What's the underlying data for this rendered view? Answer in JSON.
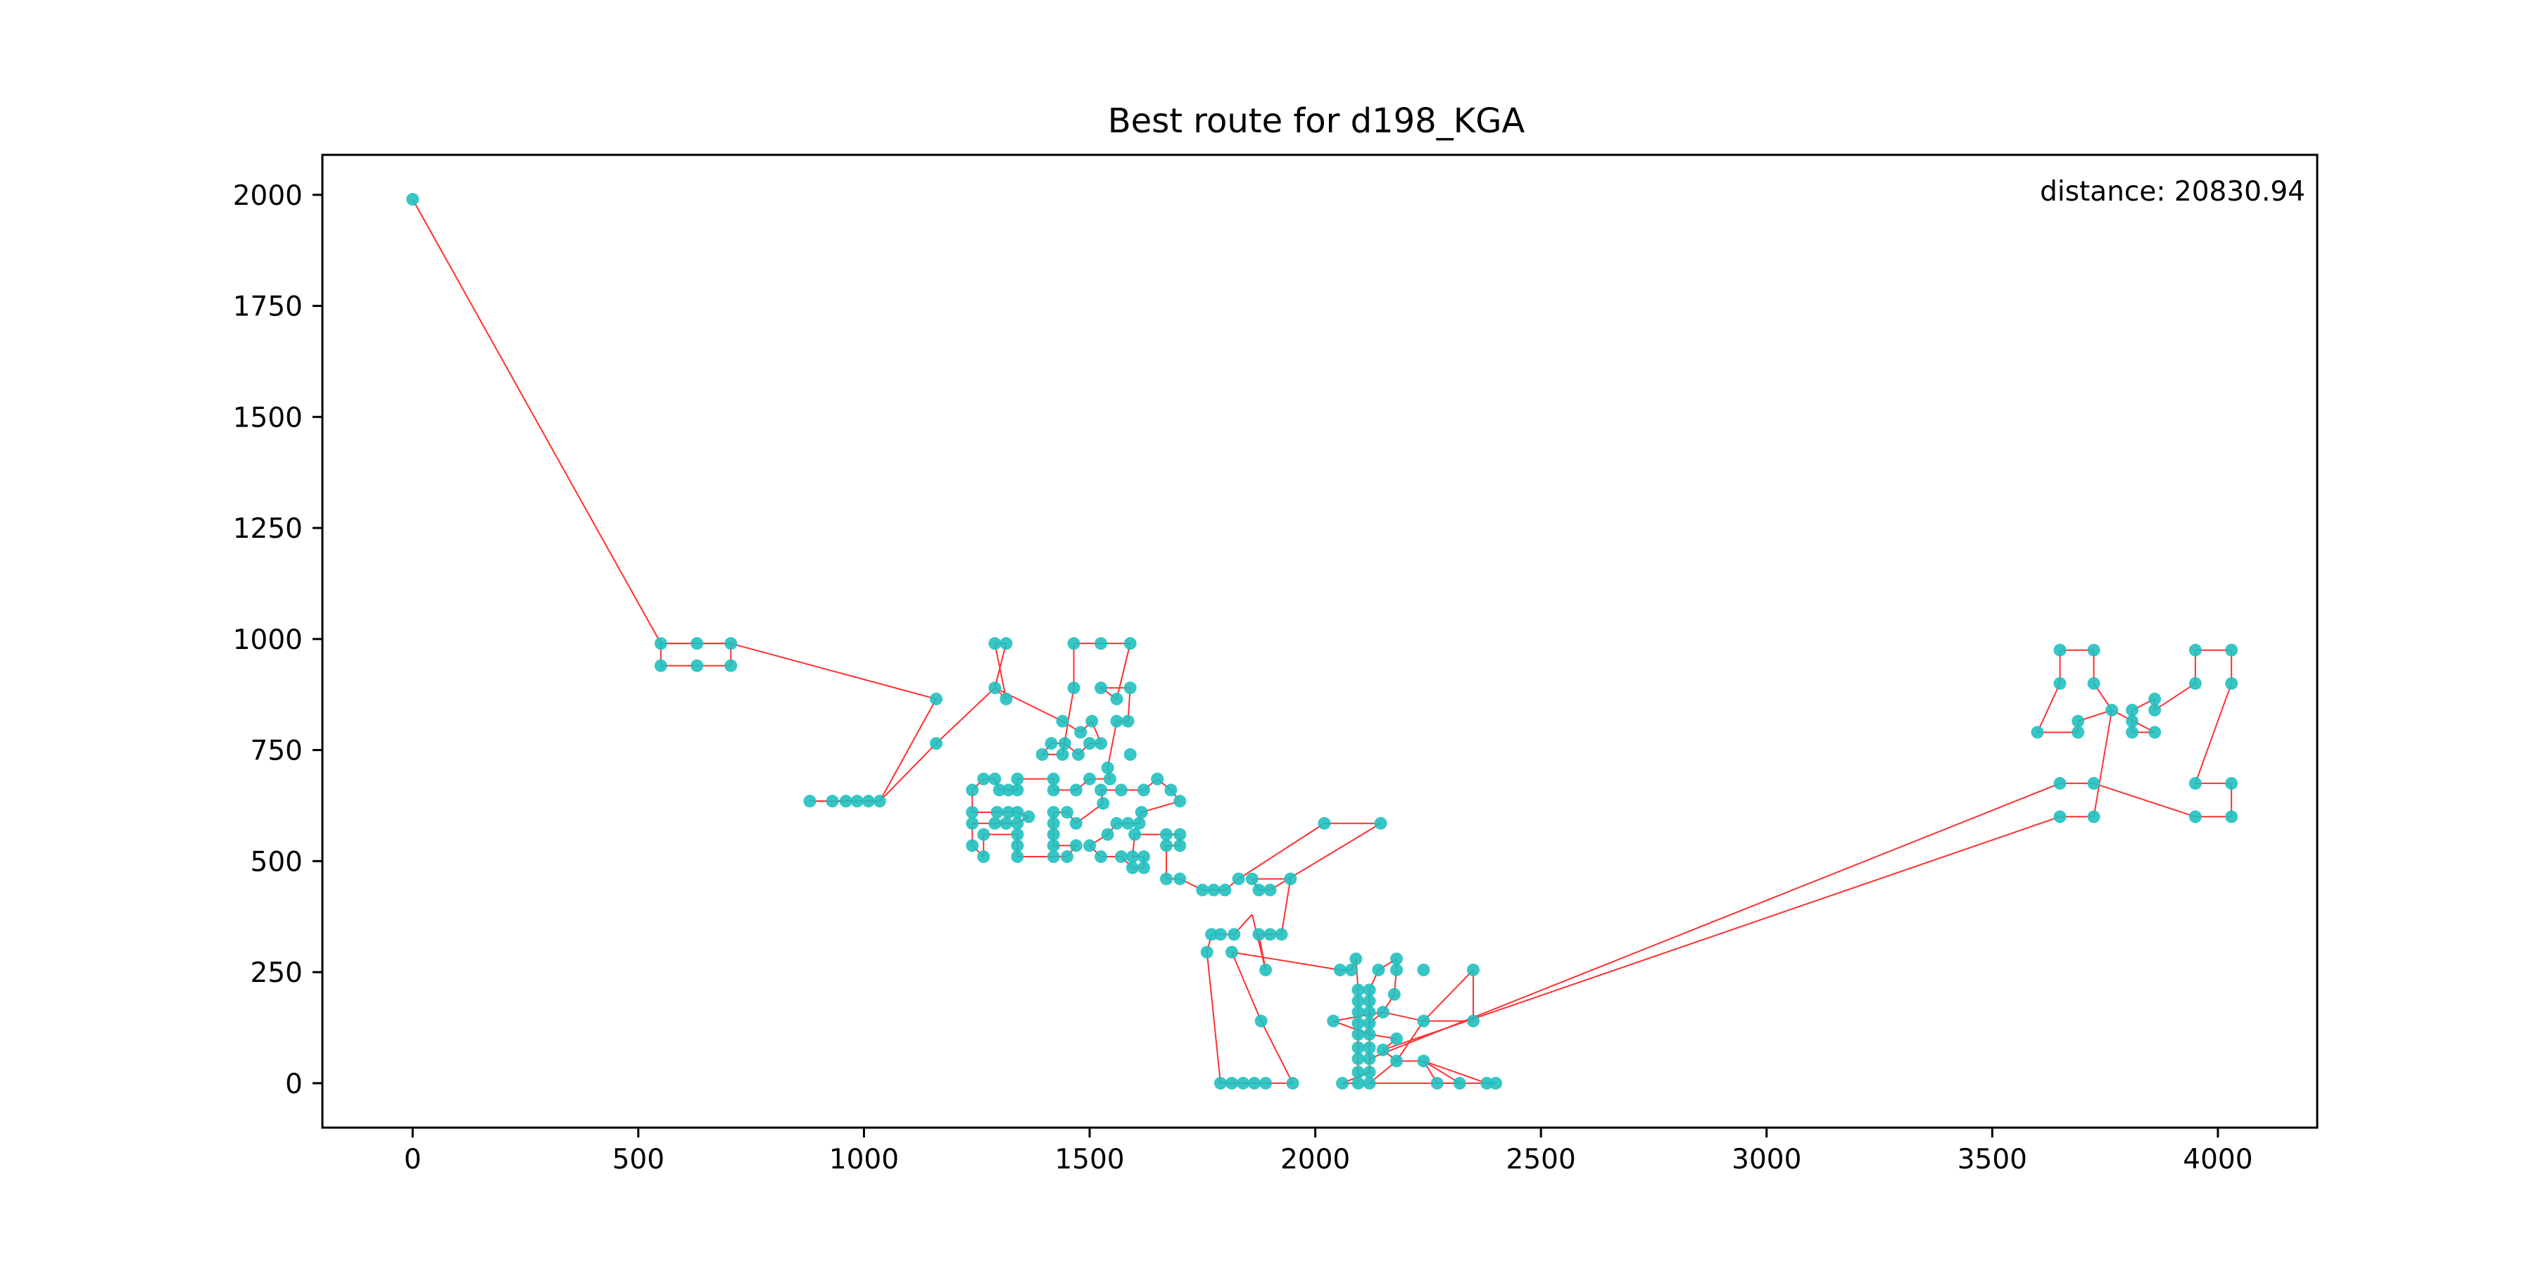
{
  "chart_data": {
    "type": "scatter",
    "title": "Best route for d198_KGA",
    "xlabel": "",
    "ylabel": "",
    "xlim": [
      -200,
      4220
    ],
    "ylim": [
      -100,
      2090
    ],
    "x_ticks": [
      0,
      500,
      1000,
      1500,
      2000,
      2500,
      3000,
      3500,
      4000
    ],
    "y_ticks": [
      0,
      250,
      500,
      750,
      1000,
      1250,
      1500,
      1750,
      2000
    ],
    "annotation": "distance: 20830.94",
    "grid": false,
    "colors": {
      "points": "#20c0c0",
      "route": "#ff3030"
    },
    "points": [
      [
        0,
        1990
      ],
      [
        550,
        990
      ],
      [
        630,
        990
      ],
      [
        705,
        990
      ],
      [
        550,
        940
      ],
      [
        630,
        940
      ],
      [
        705,
        940
      ],
      [
        1160,
        865
      ],
      [
        1160,
        765
      ],
      [
        880,
        635
      ],
      [
        930,
        635
      ],
      [
        960,
        635
      ],
      [
        985,
        635
      ],
      [
        1010,
        635
      ],
      [
        1035,
        635
      ],
      [
        1290,
        990
      ],
      [
        1315,
        990
      ],
      [
        1290,
        890
      ],
      [
        1315,
        865
      ],
      [
        1465,
        990
      ],
      [
        1525,
        990
      ],
      [
        1590,
        990
      ],
      [
        1465,
        890
      ],
      [
        1525,
        890
      ],
      [
        1590,
        890
      ],
      [
        1560,
        865
      ],
      [
        1440,
        815
      ],
      [
        1505,
        815
      ],
      [
        1560,
        815
      ],
      [
        1585,
        815
      ],
      [
        1480,
        790
      ],
      [
        1415,
        765
      ],
      [
        1445,
        765
      ],
      [
        1500,
        765
      ],
      [
        1525,
        765
      ],
      [
        1395,
        740
      ],
      [
        1440,
        740
      ],
      [
        1475,
        740
      ],
      [
        1540,
        710
      ],
      [
        1590,
        740
      ],
      [
        1265,
        685
      ],
      [
        1290,
        685
      ],
      [
        1340,
        685
      ],
      [
        1420,
        685
      ],
      [
        1500,
        685
      ],
      [
        1545,
        685
      ],
      [
        1650,
        685
      ],
      [
        1240,
        660
      ],
      [
        1300,
        660
      ],
      [
        1320,
        660
      ],
      [
        1340,
        660
      ],
      [
        1420,
        660
      ],
      [
        1470,
        660
      ],
      [
        1525,
        660
      ],
      [
        1570,
        660
      ],
      [
        1620,
        660
      ],
      [
        1680,
        660
      ],
      [
        1700,
        635
      ],
      [
        1240,
        610
      ],
      [
        1295,
        610
      ],
      [
        1320,
        610
      ],
      [
        1340,
        610
      ],
      [
        1365,
        600
      ],
      [
        1420,
        610
      ],
      [
        1450,
        610
      ],
      [
        1530,
        630
      ],
      [
        1615,
        610
      ],
      [
        1240,
        585
      ],
      [
        1290,
        585
      ],
      [
        1315,
        585
      ],
      [
        1340,
        585
      ],
      [
        1420,
        585
      ],
      [
        1470,
        585
      ],
      [
        1560,
        585
      ],
      [
        1585,
        585
      ],
      [
        1610,
        585
      ],
      [
        1670,
        560
      ],
      [
        1700,
        560
      ],
      [
        1265,
        560
      ],
      [
        1340,
        560
      ],
      [
        1420,
        560
      ],
      [
        1540,
        560
      ],
      [
        1600,
        560
      ],
      [
        1670,
        535
      ],
      [
        1700,
        535
      ],
      [
        1240,
        535
      ],
      [
        1340,
        535
      ],
      [
        1420,
        535
      ],
      [
        1470,
        535
      ],
      [
        1500,
        535
      ],
      [
        1265,
        510
      ],
      [
        1340,
        510
      ],
      [
        1420,
        510
      ],
      [
        1450,
        510
      ],
      [
        1525,
        510
      ],
      [
        1570,
        510
      ],
      [
        1595,
        510
      ],
      [
        1620,
        510
      ],
      [
        1595,
        485
      ],
      [
        1620,
        485
      ],
      [
        1670,
        460
      ],
      [
        1700,
        460
      ],
      [
        1750,
        435
      ],
      [
        1775,
        435
      ],
      [
        1800,
        435
      ],
      [
        1830,
        460
      ],
      [
        1860,
        460
      ],
      [
        1875,
        435
      ],
      [
        1900,
        435
      ],
      [
        1945,
        460
      ],
      [
        2020,
        585
      ],
      [
        2145,
        585
      ],
      [
        1770,
        335
      ],
      [
        1790,
        335
      ],
      [
        1820,
        335
      ],
      [
        1875,
        335
      ],
      [
        1900,
        335
      ],
      [
        1925,
        335
      ],
      [
        1760,
        295
      ],
      [
        1815,
        295
      ],
      [
        1890,
        255
      ],
      [
        1880,
        140
      ],
      [
        1790,
        0
      ],
      [
        1815,
        0
      ],
      [
        1840,
        0
      ],
      [
        1865,
        0
      ],
      [
        1890,
        0
      ],
      [
        1950,
        0
      ],
      [
        2055,
        255
      ],
      [
        2080,
        255
      ],
      [
        2090,
        280
      ],
      [
        2140,
        255
      ],
      [
        2180,
        280
      ],
      [
        2180,
        255
      ],
      [
        2240,
        255
      ],
      [
        2350,
        255
      ],
      [
        2095,
        210
      ],
      [
        2120,
        210
      ],
      [
        2095,
        185
      ],
      [
        2120,
        185
      ],
      [
        2175,
        200
      ],
      [
        2040,
        140
      ],
      [
        2095,
        160
      ],
      [
        2120,
        160
      ],
      [
        2150,
        160
      ],
      [
        2240,
        140
      ],
      [
        2350,
        140
      ],
      [
        2095,
        135
      ],
      [
        2120,
        135
      ],
      [
        2095,
        110
      ],
      [
        2120,
        110
      ],
      [
        2180,
        100
      ],
      [
        2095,
        80
      ],
      [
        2120,
        80
      ],
      [
        2150,
        75
      ],
      [
        2095,
        55
      ],
      [
        2120,
        55
      ],
      [
        2180,
        50
      ],
      [
        2240,
        50
      ],
      [
        2095,
        25
      ],
      [
        2120,
        25
      ],
      [
        2060,
        0
      ],
      [
        2095,
        0
      ],
      [
        2120,
        0
      ],
      [
        2270,
        0
      ],
      [
        2320,
        0
      ],
      [
        2380,
        0
      ],
      [
        2400,
        0
      ],
      [
        3650,
        975
      ],
      [
        3725,
        975
      ],
      [
        3950,
        975
      ],
      [
        4030,
        975
      ],
      [
        3650,
        900
      ],
      [
        3725,
        900
      ],
      [
        3950,
        900
      ],
      [
        4030,
        900
      ],
      [
        3765,
        840
      ],
      [
        3810,
        840
      ],
      [
        3860,
        865
      ],
      [
        3860,
        840
      ],
      [
        3690,
        815
      ],
      [
        3810,
        815
      ],
      [
        3600,
        790
      ],
      [
        3690,
        790
      ],
      [
        3810,
        790
      ],
      [
        3860,
        790
      ],
      [
        3650,
        675
      ],
      [
        3725,
        675
      ],
      [
        3950,
        675
      ],
      [
        4030,
        675
      ],
      [
        3650,
        600
      ],
      [
        3725,
        600
      ],
      [
        3950,
        600
      ],
      [
        4030,
        600
      ]
    ],
    "route": [
      [
        0,
        1990
      ],
      [
        550,
        990
      ],
      [
        550,
        940
      ],
      [
        630,
        940
      ],
      [
        705,
        940
      ],
      [
        705,
        990
      ],
      [
        630,
        990
      ],
      [
        550,
        990
      ],
      [
        705,
        990
      ],
      [
        1160,
        865
      ],
      [
        1035,
        635
      ],
      [
        1010,
        635
      ],
      [
        985,
        635
      ],
      [
        960,
        635
      ],
      [
        930,
        635
      ],
      [
        880,
        635
      ],
      [
        1035,
        635
      ],
      [
        1160,
        765
      ],
      [
        1290,
        890
      ],
      [
        1315,
        990
      ],
      [
        1290,
        990
      ],
      [
        1315,
        865
      ],
      [
        1290,
        890
      ],
      [
        1440,
        815
      ],
      [
        1480,
        790
      ],
      [
        1505,
        815
      ],
      [
        1525,
        765
      ],
      [
        1500,
        765
      ],
      [
        1475,
        740
      ],
      [
        1445,
        765
      ],
      [
        1415,
        765
      ],
      [
        1395,
        740
      ],
      [
        1440,
        740
      ],
      [
        1465,
        890
      ],
      [
        1465,
        990
      ],
      [
        1525,
        990
      ],
      [
        1590,
        990
      ],
      [
        1560,
        865
      ],
      [
        1525,
        890
      ],
      [
        1590,
        890
      ],
      [
        1585,
        815
      ],
      [
        1560,
        815
      ],
      [
        1540,
        710
      ],
      [
        1545,
        685
      ],
      [
        1500,
        685
      ],
      [
        1470,
        660
      ],
      [
        1420,
        660
      ],
      [
        1420,
        685
      ],
      [
        1340,
        685
      ],
      [
        1340,
        660
      ],
      [
        1320,
        660
      ],
      [
        1300,
        660
      ],
      [
        1290,
        685
      ],
      [
        1265,
        685
      ],
      [
        1240,
        660
      ],
      [
        1240,
        610
      ],
      [
        1295,
        610
      ],
      [
        1320,
        610
      ],
      [
        1340,
        610
      ],
      [
        1365,
        600
      ],
      [
        1340,
        585
      ],
      [
        1315,
        585
      ],
      [
        1290,
        585
      ],
      [
        1240,
        585
      ],
      [
        1240,
        535
      ],
      [
        1265,
        510
      ],
      [
        1265,
        560
      ],
      [
        1340,
        560
      ],
      [
        1340,
        535
      ],
      [
        1340,
        510
      ],
      [
        1420,
        510
      ],
      [
        1450,
        510
      ],
      [
        1470,
        535
      ],
      [
        1420,
        535
      ],
      [
        1420,
        560
      ],
      [
        1420,
        585
      ],
      [
        1420,
        610
      ],
      [
        1450,
        610
      ],
      [
        1470,
        585
      ],
      [
        1530,
        630
      ],
      [
        1525,
        660
      ],
      [
        1570,
        660
      ],
      [
        1620,
        660
      ],
      [
        1650,
        685
      ],
      [
        1680,
        660
      ],
      [
        1700,
        635
      ],
      [
        1615,
        610
      ],
      [
        1610,
        585
      ],
      [
        1585,
        585
      ],
      [
        1560,
        585
      ],
      [
        1540,
        560
      ],
      [
        1500,
        535
      ],
      [
        1525,
        510
      ],
      [
        1570,
        510
      ],
      [
        1595,
        485
      ],
      [
        1620,
        485
      ],
      [
        1620,
        510
      ],
      [
        1595,
        510
      ],
      [
        1600,
        560
      ],
      [
        1670,
        560
      ],
      [
        1700,
        560
      ],
      [
        1700,
        535
      ],
      [
        1670,
        535
      ],
      [
        1670,
        460
      ],
      [
        1700,
        460
      ],
      [
        1750,
        435
      ],
      [
        1775,
        435
      ],
      [
        1800,
        435
      ],
      [
        1830,
        460
      ],
      [
        2020,
        585
      ],
      [
        2145,
        585
      ],
      [
        1900,
        435
      ],
      [
        1875,
        435
      ],
      [
        1860,
        460
      ],
      [
        1945,
        460
      ],
      [
        1925,
        335
      ],
      [
        1900,
        335
      ],
      [
        1875,
        335
      ],
      [
        1890,
        255
      ],
      [
        1860,
        380
      ],
      [
        1820,
        335
      ],
      [
        1790,
        335
      ],
      [
        1770,
        335
      ],
      [
        1760,
        295
      ],
      [
        1790,
        0
      ],
      [
        1815,
        0
      ],
      [
        1840,
        0
      ],
      [
        1865,
        0
      ],
      [
        1890,
        0
      ],
      [
        1950,
        0
      ],
      [
        1880,
        140
      ],
      [
        1815,
        295
      ],
      [
        2055,
        255
      ],
      [
        2080,
        255
      ],
      [
        2090,
        280
      ],
      [
        2095,
        210
      ],
      [
        2095,
        185
      ],
      [
        2095,
        160
      ],
      [
        2095,
        135
      ],
      [
        2095,
        110
      ],
      [
        2095,
        80
      ],
      [
        2095,
        55
      ],
      [
        2095,
        25
      ],
      [
        2095,
        0
      ],
      [
        2060,
        0
      ],
      [
        2120,
        25
      ],
      [
        2120,
        55
      ],
      [
        2120,
        80
      ],
      [
        2120,
        110
      ],
      [
        2120,
        135
      ],
      [
        2120,
        160
      ],
      [
        2120,
        185
      ],
      [
        2120,
        210
      ],
      [
        2140,
        255
      ],
      [
        2180,
        280
      ],
      [
        2180,
        255
      ],
      [
        2175,
        200
      ],
      [
        2150,
        160
      ],
      [
        2040,
        140
      ],
      [
        2120,
        110
      ],
      [
        2180,
        100
      ],
      [
        2150,
        75
      ],
      [
        2180,
        50
      ],
      [
        2240,
        50
      ],
      [
        2270,
        0
      ],
      [
        2320,
        0
      ],
      [
        2240,
        50
      ],
      [
        2380,
        0
      ],
      [
        2400,
        0
      ],
      [
        2120,
        0
      ],
      [
        2180,
        50
      ],
      [
        2240,
        140
      ],
      [
        2350,
        255
      ],
      [
        2350,
        140
      ],
      [
        2240,
        140
      ],
      [
        2150,
        160
      ],
      [
        2120,
        135
      ],
      [
        2120,
        55
      ],
      [
        3650,
        675
      ],
      [
        3725,
        675
      ],
      [
        3950,
        600
      ],
      [
        4030,
        600
      ],
      [
        4030,
        675
      ],
      [
        3950,
        675
      ],
      [
        4030,
        900
      ],
      [
        4030,
        975
      ],
      [
        3950,
        975
      ],
      [
        3950,
        900
      ],
      [
        3860,
        840
      ],
      [
        3860,
        865
      ],
      [
        3810,
        840
      ],
      [
        3810,
        815
      ],
      [
        3810,
        790
      ],
      [
        3860,
        790
      ],
      [
        3765,
        840
      ],
      [
        3690,
        815
      ],
      [
        3690,
        790
      ],
      [
        3600,
        790
      ],
      [
        3650,
        900
      ],
      [
        3650,
        975
      ],
      [
        3725,
        975
      ],
      [
        3725,
        900
      ],
      [
        3765,
        840
      ],
      [
        3725,
        600
      ],
      [
        3650,
        600
      ],
      [
        2150,
        75
      ]
    ]
  }
}
